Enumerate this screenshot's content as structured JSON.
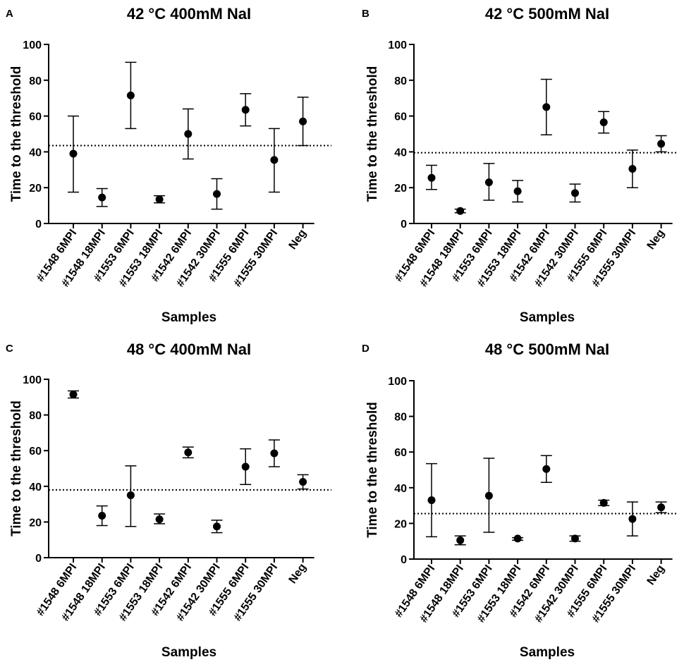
{
  "chart_data": [
    {
      "panel": "A",
      "type": "scatter",
      "title": "42 °C 400mM NaI",
      "xlabel": "Samples",
      "ylabel": "Time to the threshold",
      "ylim": [
        0,
        100
      ],
      "yticks": [
        0,
        20,
        40,
        60,
        80,
        100
      ],
      "categories": [
        "#1548 6MPI",
        "#1548 18MPI",
        "#1553 6MPI",
        "#1553 18MPI",
        "#1542 6MPI",
        "#1542 30MPI",
        "#1555 6MPI",
        "#1555 30MPI",
        "Neg"
      ],
      "values": [
        39,
        14.5,
        71.5,
        13.5,
        50,
        16.5,
        63.5,
        35.5,
        57
      ],
      "err_low": [
        17.5,
        9.5,
        53,
        11.5,
        36,
        8,
        54.5,
        17.5,
        43.5
      ],
      "err_high": [
        60,
        19.5,
        90,
        15.5,
        64,
        25,
        72.5,
        53,
        70.5
      ],
      "threshold": 43.5
    },
    {
      "panel": "B",
      "type": "scatter",
      "title": "42 °C 500mM NaI",
      "xlabel": "Samples",
      "ylabel": "Time to the threshold",
      "ylim": [
        0,
        100
      ],
      "yticks": [
        0,
        20,
        40,
        60,
        80,
        100
      ],
      "categories": [
        "#1548 6MPI",
        "#1548 18MPI",
        "#1553 6MPI",
        "#1553 18MPI",
        "#1542 6MPI",
        "#1542 30MPI",
        "#1555 6MPI",
        "#1555 30MPI",
        "Neg"
      ],
      "values": [
        25.5,
        7,
        23,
        18,
        65,
        17,
        56.5,
        30.5,
        44.5
      ],
      "err_low": [
        19,
        6,
        13,
        12,
        49.5,
        12,
        50.5,
        20,
        40
      ],
      "err_high": [
        32.5,
        8,
        33.5,
        24,
        80.5,
        22,
        62.5,
        41,
        49
      ],
      "threshold": 39.5
    },
    {
      "panel": "C",
      "type": "scatter",
      "title": "48 °C 400mM NaI",
      "xlabel": "Samples",
      "ylabel": "Time to the threshold",
      "ylim": [
        0,
        100
      ],
      "yticks": [
        0,
        20,
        40,
        60,
        80,
        100
      ],
      "categories": [
        "#1548 6MPI",
        "#1548 18MPI",
        "#1553 6MPI",
        "#1553 18MPI",
        "#1542 6MPI",
        "#1542 30MPI",
        "#1555 6MPI",
        "#1555 30MPI",
        "Neg"
      ],
      "values": [
        91.5,
        23.5,
        35,
        21.5,
        59,
        17.5,
        51,
        58.5,
        42.5
      ],
      "err_low": [
        89.5,
        18,
        17.5,
        19,
        56,
        14,
        41,
        51,
        38.5
      ],
      "err_high": [
        93.5,
        29,
        51.5,
        24.5,
        62,
        21,
        61,
        66,
        46.5
      ],
      "threshold": 38
    },
    {
      "panel": "D",
      "type": "scatter",
      "title": "48 °C 500mM NaI",
      "xlabel": "Samples",
      "ylabel": "Time to the threshold",
      "ylim": [
        0,
        100
      ],
      "yticks": [
        0,
        20,
        40,
        60,
        80,
        100
      ],
      "categories": [
        "#1548 6MPI",
        "#1548 18MPI",
        "#1553 6MPI",
        "#1553 18MPI",
        "#1542 6MPI",
        "#1542 30MPI",
        "#1555 6MPI",
        "#1555 30MPI",
        "Neg"
      ],
      "values": [
        33,
        10.5,
        35.5,
        11.5,
        50.5,
        11.5,
        31.5,
        22.5,
        29
      ],
      "err_low": [
        12.5,
        8,
        15,
        10.5,
        43,
        10,
        30,
        13,
        26
      ],
      "err_high": [
        53.5,
        13,
        56.5,
        12,
        58,
        13,
        33,
        32,
        32
      ],
      "threshold": 25.5
    }
  ]
}
